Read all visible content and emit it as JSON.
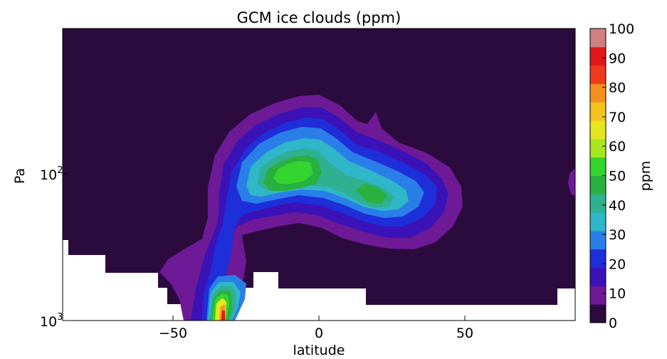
{
  "chart_data": {
    "type": "heatmap",
    "subtype": "filled-contour",
    "title": "GCM ice clouds (ppm)",
    "xlabel": "latitude",
    "ylabel": "Pa",
    "xlim": [
      -88,
      88
    ],
    "ylim_log": [
      100,
      1000
    ],
    "y_scale": "log",
    "y_inverted": true,
    "x_ticks": [
      {
        "value": -50,
        "label": "−50"
      },
      {
        "value": 0,
        "label": "0"
      },
      {
        "value": 50,
        "label": "50"
      }
    ],
    "y_ticks": [
      {
        "value": 100,
        "base": "10",
        "exp": "2"
      },
      {
        "value": 1000,
        "base": "10",
        "exp": "3"
      }
    ],
    "colorbar": {
      "label": "ppm",
      "min": 0,
      "max": 100,
      "ticks": [
        "0",
        "10",
        "20",
        "30",
        "40",
        "50",
        "60",
        "70",
        "80",
        "90",
        "100"
      ],
      "colors": [
        "#2b0a3d",
        "#6e1a96",
        "#3a12b8",
        "#1e2ed8",
        "#2a7ee8",
        "#2fb6c8",
        "#2fb090",
        "#28b040",
        "#33d42e",
        "#a8e61e",
        "#e6e61e",
        "#f5c21e",
        "#f5901e",
        "#f03a1e",
        "#e01818",
        "#d08080"
      ]
    },
    "background_color": "#2b0a3d",
    "missing_data_color": "#ffffff"
  }
}
